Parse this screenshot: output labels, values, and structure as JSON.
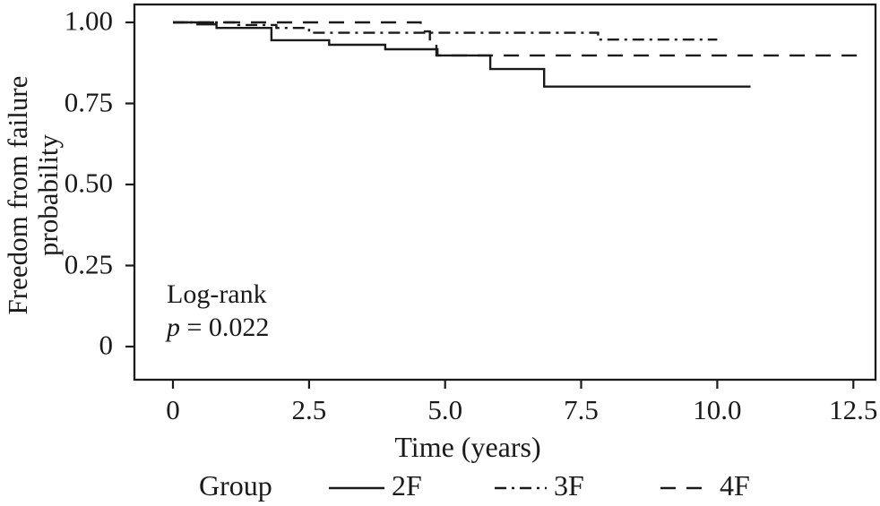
{
  "figure": {
    "background": "#ffffff",
    "line_color": "#1a1a1a"
  },
  "chart_data": {
    "type": "line",
    "subtype": "kaplan-meier-step",
    "title": "",
    "xlabel": "Time (years)",
    "ylabel_line1": "Freedom from failure",
    "ylabel_line2": "probability",
    "xlim": [
      -0.7,
      12.9
    ],
    "ylim": [
      -0.1,
      1.05
    ],
    "grid": false,
    "x_ticks": [
      0,
      2.5,
      5.0,
      7.5,
      10.0,
      12.5
    ],
    "x_tick_labels": [
      "0",
      "2.5",
      "5.0",
      "7.5",
      "10.0",
      "12.5"
    ],
    "y_ticks": [
      1.0,
      0.75,
      0.5,
      0.25,
      0
    ],
    "y_tick_labels": [
      "1.00",
      "0.75",
      "0.50",
      "0.25",
      "0"
    ],
    "annotation": {
      "line1": "Log-rank",
      "p_symbol": "p",
      "p_rest": " = 0.022"
    },
    "legend": {
      "title": "Group",
      "position": "bottom"
    },
    "series": [
      {
        "name": "2F",
        "style": "solid",
        "points": [
          [
            0,
            1.0
          ],
          [
            0.45,
            0.994
          ],
          [
            0.8,
            0.983
          ],
          [
            1.81,
            0.945
          ],
          [
            2.87,
            0.931
          ],
          [
            3.9,
            0.917
          ],
          [
            4.86,
            0.898
          ],
          [
            5.83,
            0.856
          ],
          [
            6.82,
            0.802
          ]
        ],
        "end_t": 10.61
      },
      {
        "name": "3F",
        "style": "dash-dot",
        "points": [
          [
            0,
            1.0
          ],
          [
            1.2,
            0.992
          ],
          [
            1.9,
            0.983
          ],
          [
            2.5,
            0.968
          ],
          [
            7.81,
            0.947
          ]
        ],
        "end_t": 10.0
      },
      {
        "name": "4F",
        "style": "long-dash",
        "points": [
          [
            0,
            1.0
          ],
          [
            4.55,
            0.972
          ],
          [
            4.72,
            0.939
          ],
          [
            4.84,
            0.898
          ]
        ],
        "end_t": 12.6
      }
    ]
  }
}
